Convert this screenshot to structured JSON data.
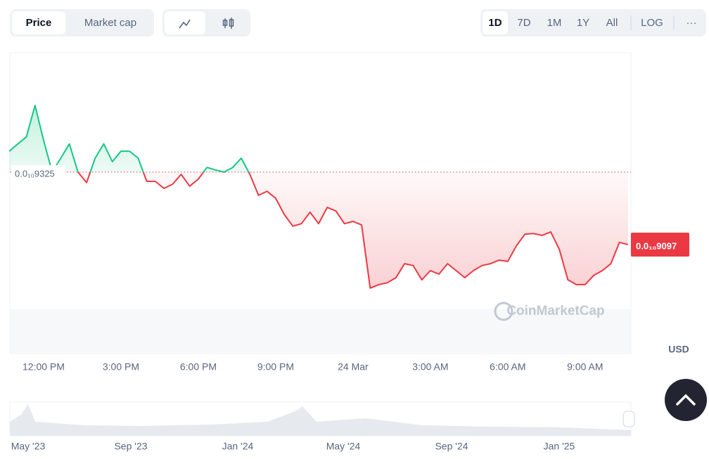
{
  "toolbar": {
    "tabs": [
      "Price",
      "Market cap"
    ],
    "ranges": [
      "1D",
      "7D",
      "1M",
      "1Y",
      "All",
      "LOG"
    ],
    "more": "···"
  },
  "currency": "USD",
  "watermark": "CoinMarketCap",
  "navigator": {
    "labels": [
      "May '23",
      "Sep '23",
      "Jan '24",
      "May '24",
      "Sep '24",
      "Jan '25"
    ]
  },
  "chart_data": {
    "type": "line",
    "categories": [
      null,
      null,
      null,
      null,
      "12:00 PM",
      null,
      null,
      null,
      null,
      null,
      null,
      null,
      null,
      "3:00 PM",
      null,
      null,
      null,
      null,
      null,
      null,
      null,
      null,
      "6:00 PM",
      null,
      null,
      null,
      null,
      null,
      null,
      null,
      null,
      "9:00 PM",
      null,
      null,
      null,
      null,
      null,
      null,
      null,
      null,
      "24 Mar",
      null,
      null,
      null,
      null,
      null,
      null,
      null,
      null,
      "3:00 AM",
      null,
      null,
      null,
      null,
      null,
      null,
      null,
      null,
      "6:00 AM",
      null,
      null,
      null,
      null,
      null,
      null,
      null,
      null,
      "9:00 AM",
      null,
      null,
      null,
      null,
      null
    ],
    "values": [
      9.391e-11,
      9.414e-11,
      9.436e-11,
      9.535e-11,
      9.425e-11,
      9.325e-11,
      9.369e-11,
      9.414e-11,
      9.325e-11,
      9.292e-11,
      9.369e-11,
      9.414e-11,
      9.358e-11,
      9.391e-11,
      9.391e-11,
      9.369e-11,
      9.296e-11,
      9.296e-11,
      9.274e-11,
      9.287e-11,
      9.318e-11,
      9.281e-11,
      9.303e-11,
      9.34e-11,
      9.332e-11,
      9.325e-11,
      9.34e-11,
      9.369e-11,
      9.318e-11,
      9.252e-11,
      9.265e-11,
      9.243e-11,
      9.192e-11,
      9.155e-11,
      9.163e-11,
      9.199e-11,
      9.163e-11,
      9.214e-11,
      9.203e-11,
      9.163e-11,
      9.17e-11,
      9.159e-11,
      8.96e-11,
      8.971e-11,
      8.977e-11,
      8.993e-11,
      9.037e-11,
      9.031e-11,
      8.986e-11,
      9.015e-11,
      9.004e-11,
      9.037e-11,
      9.015e-11,
      8.993e-11,
      9.015e-11,
      9.031e-11,
      9.037e-11,
      9.048e-11,
      9.044e-11,
      9.093e-11,
      9.13e-11,
      9.132e-11,
      9.126e-11,
      9.137e-11,
      9.082e-11,
      8.986e-11,
      8.971e-11,
      8.971e-11,
      9e-11,
      9.015e-11,
      9.037e-11,
      9.104e-11,
      9.097e-11
    ],
    "value_labels": [
      null,
      null,
      null,
      null,
      null,
      null,
      null,
      null,
      null,
      null,
      null,
      null,
      null,
      null,
      null,
      null,
      null,
      null,
      null,
      null,
      null,
      null,
      null,
      null,
      null,
      null,
      null,
      null,
      null,
      null,
      null,
      null,
      null,
      null,
      null,
      null,
      null,
      null,
      null,
      null,
      null,
      null,
      null,
      null,
      null,
      null,
      null,
      null,
      null,
      null,
      null,
      null,
      null,
      null,
      null,
      null,
      null,
      null,
      null,
      null,
      null,
      null,
      null,
      null,
      null,
      null,
      null,
      null,
      null,
      null,
      null,
      null,
      "0.0₁₀9097"
    ],
    "baseline": {
      "value": 9.325e-11,
      "label": "0.0₁₀9325"
    },
    "up_color": "#16c784",
    "down_color": "#ea3943",
    "ylim": [
      8.754e-11,
      9.701e-11
    ]
  }
}
